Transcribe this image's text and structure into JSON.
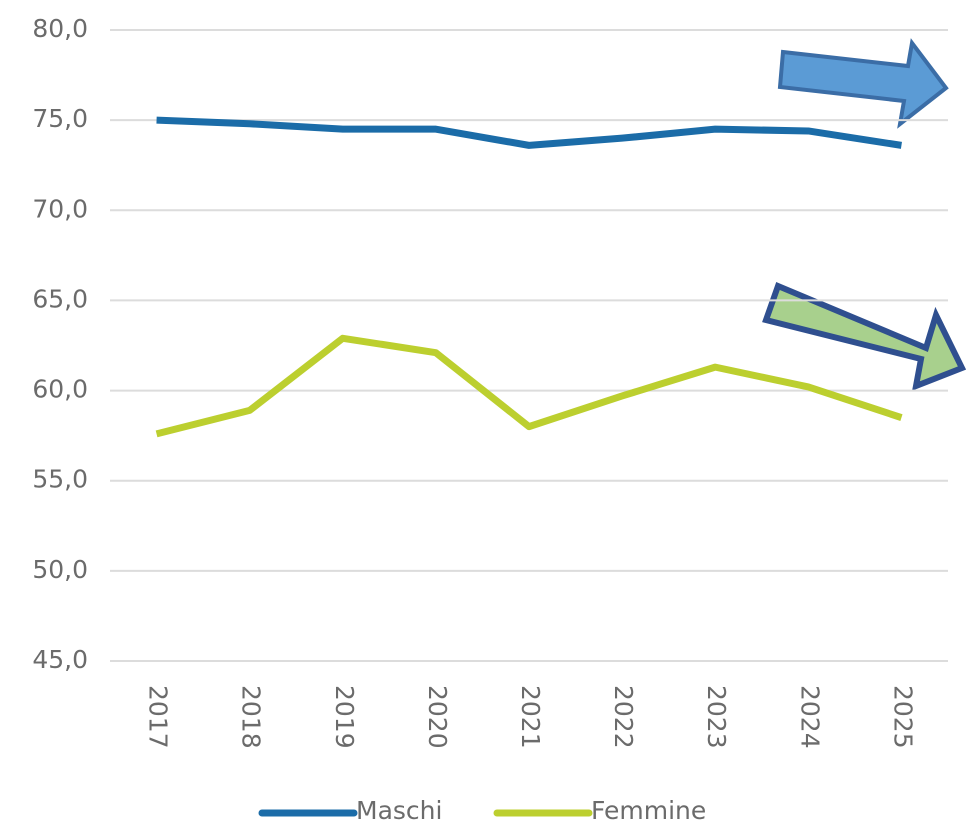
{
  "chart_data": {
    "type": "line",
    "categories": [
      "2017",
      "2018",
      "2019",
      "2020",
      "2021",
      "2022",
      "2023",
      "2024",
      "2025"
    ],
    "series": [
      {
        "name": "Maschi",
        "color": "#1b6ca8",
        "values": [
          75.0,
          74.8,
          74.5,
          74.5,
          73.6,
          74.0,
          74.5,
          74.4,
          73.6
        ]
      },
      {
        "name": "Femmine",
        "color": "#bccf2f",
        "values": [
          57.6,
          58.9,
          62.9,
          62.1,
          58.0,
          59.7,
          61.3,
          60.2,
          58.5
        ]
      }
    ],
    "ylim": [
      45,
      80
    ],
    "yticks": [
      {
        "value": 45,
        "label": "45,0"
      },
      {
        "value": 50,
        "label": "50,0"
      },
      {
        "value": 55,
        "label": "55,0"
      },
      {
        "value": 60,
        "label": "60,0"
      },
      {
        "value": 65,
        "label": "65,0"
      },
      {
        "value": 70,
        "label": "70,0"
      },
      {
        "value": 75,
        "label": "75,0"
      },
      {
        "value": 80,
        "label": "80,0"
      }
    ],
    "grid": true
  }
}
